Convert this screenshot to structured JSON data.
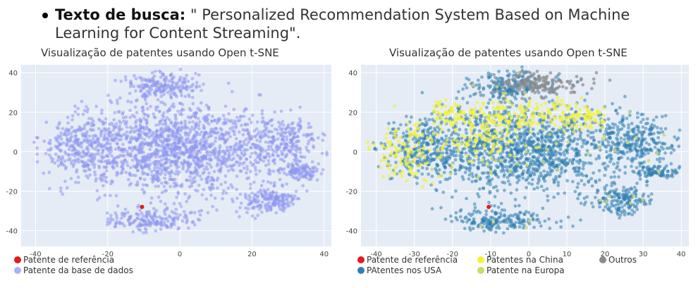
{
  "bullet": {
    "label": "Texto de busca:",
    "text": " \" Personalized Recommendation System Based on Machine Learning for Content  Streaming\"."
  },
  "colors": {
    "background": "#ffffff",
    "plot_background": "#e5ecf6",
    "grid": "#ffffff",
    "reference": "#e31a1c",
    "database": "#8f98f0",
    "china": "#f2f23a",
    "usa": "#2f7fb0",
    "europe": "#c7dc6a",
    "others": "#8c8c8c"
  },
  "chart_data": [
    {
      "type": "scatter",
      "title": "Visualização de patentes usando Open t-SNE",
      "xlim": [
        -44,
        42
      ],
      "ylim": [
        -48,
        44
      ],
      "xticks": [
        -40,
        -20,
        0,
        20,
        40
      ],
      "yticks": [
        -40,
        -20,
        0,
        20,
        40
      ],
      "grid": true,
      "legend_position": "bottom-left",
      "series": [
        {
          "name": "Patente de referência",
          "color": "#e31a1c",
          "points": [
            [
              -10.5,
              -28
            ]
          ]
        },
        {
          "name": "Patente da base de dados",
          "color": "#8f98f0",
          "distribution": "dense cloud spanning x -42 to 38, y -44 to 42"
        }
      ]
    },
    {
      "type": "scatter",
      "title": "Visualização de patentes usando Open t-SNE",
      "xlim": [
        -44,
        42
      ],
      "ylim": [
        -48,
        44
      ],
      "xticks": [
        -40,
        -30,
        -20,
        -10,
        0,
        10,
        20,
        30,
        40
      ],
      "yticks": [
        -40,
        -20,
        0,
        20,
        40
      ],
      "grid": true,
      "legend_position": "bottom",
      "series": [
        {
          "name": "Patente de referência",
          "color": "#e31a1c",
          "points": [
            [
              -10.5,
              -28
            ]
          ]
        },
        {
          "name": "Patentes na China",
          "color": "#f2f23a",
          "distribution": "upper-left band"
        },
        {
          "name": "Outros",
          "color": "#8c8c8c",
          "distribution": "top cluster near x 0, y 35"
        },
        {
          "name": "PAtentes nos USA",
          "color": "#2f7fb0",
          "distribution": "dense cloud over whole area"
        },
        {
          "name": "Patente na Europa",
          "color": "#c7dc6a",
          "distribution": "sparse scattered"
        }
      ]
    }
  ],
  "legends": {
    "left": [
      "Patente de referência",
      "Patente da base de dados"
    ],
    "right": [
      "Patente de referência",
      "Patentes na China",
      "Outros",
      "PAtentes nos USA",
      "Patente na Europa"
    ]
  }
}
